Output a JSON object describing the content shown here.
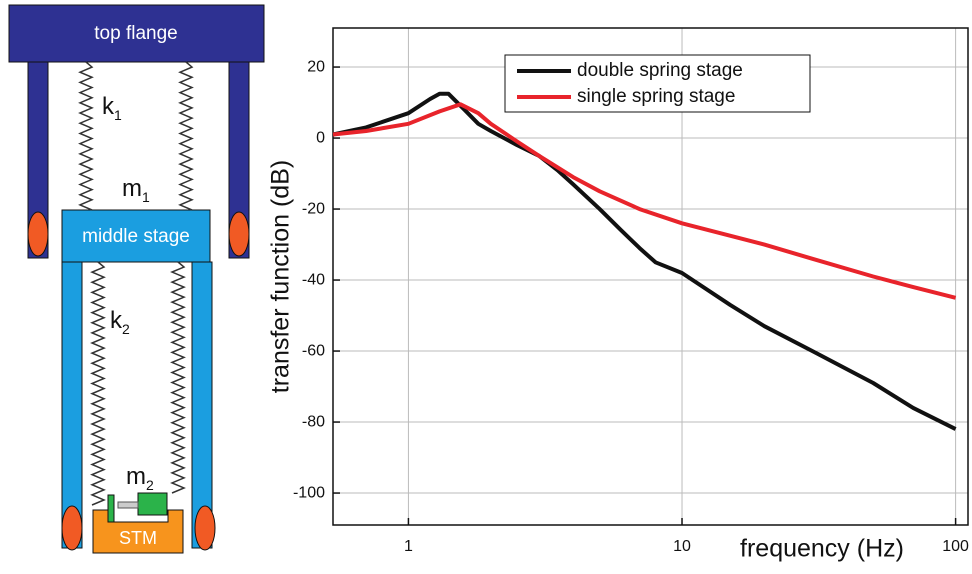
{
  "chart_data": {
    "type": "line",
    "xlabel": "frequency (Hz)",
    "ylabel": "transfer function (dB)",
    "xscale": "log",
    "xlim": [
      0.53,
      111
    ],
    "ylim": [
      -109,
      31
    ],
    "xticks": [
      1,
      10,
      100
    ],
    "yticks": [
      -100,
      -80,
      -60,
      -40,
      -20,
      0,
      20
    ],
    "grid": true,
    "legend": "upper center",
    "series": [
      {
        "name": "double spring stage",
        "color": "#111111",
        "x": [
          0.53,
          0.7,
          1,
          1.2,
          1.3,
          1.4,
          1.6,
          1.8,
          2,
          2.5,
          3,
          3.5,
          4,
          5,
          6,
          7,
          8,
          10,
          15,
          20,
          30,
          50,
          70,
          100
        ],
        "values": [
          1,
          3,
          7,
          11,
          12.5,
          12.5,
          8,
          4,
          2,
          -2,
          -5,
          -9,
          -13,
          -20,
          -26,
          -31,
          -35,
          -38,
          -47,
          -53,
          -60,
          -69,
          -76,
          -82
        ]
      },
      {
        "name": "single spring stage",
        "color": "#e8242b",
        "x": [
          0.53,
          0.7,
          1,
          1.3,
          1.55,
          1.8,
          2,
          2.5,
          3,
          4,
          5,
          7,
          10,
          20,
          30,
          50,
          70,
          100
        ],
        "values": [
          1,
          2,
          4,
          7.5,
          9.5,
          7,
          4,
          -1,
          -5,
          -11,
          -15,
          -20,
          -24,
          -30,
          -34,
          -39,
          -42,
          -45
        ]
      }
    ]
  },
  "diagram": {
    "top": "top flange",
    "middle": "middle stage",
    "stm": "STM",
    "k1": {
      "main": "k",
      "sub": "1"
    },
    "m1": {
      "main": "m",
      "sub": "1"
    },
    "k2": {
      "main": "k",
      "sub": "2"
    },
    "m2": {
      "main": "m",
      "sub": "2"
    }
  }
}
